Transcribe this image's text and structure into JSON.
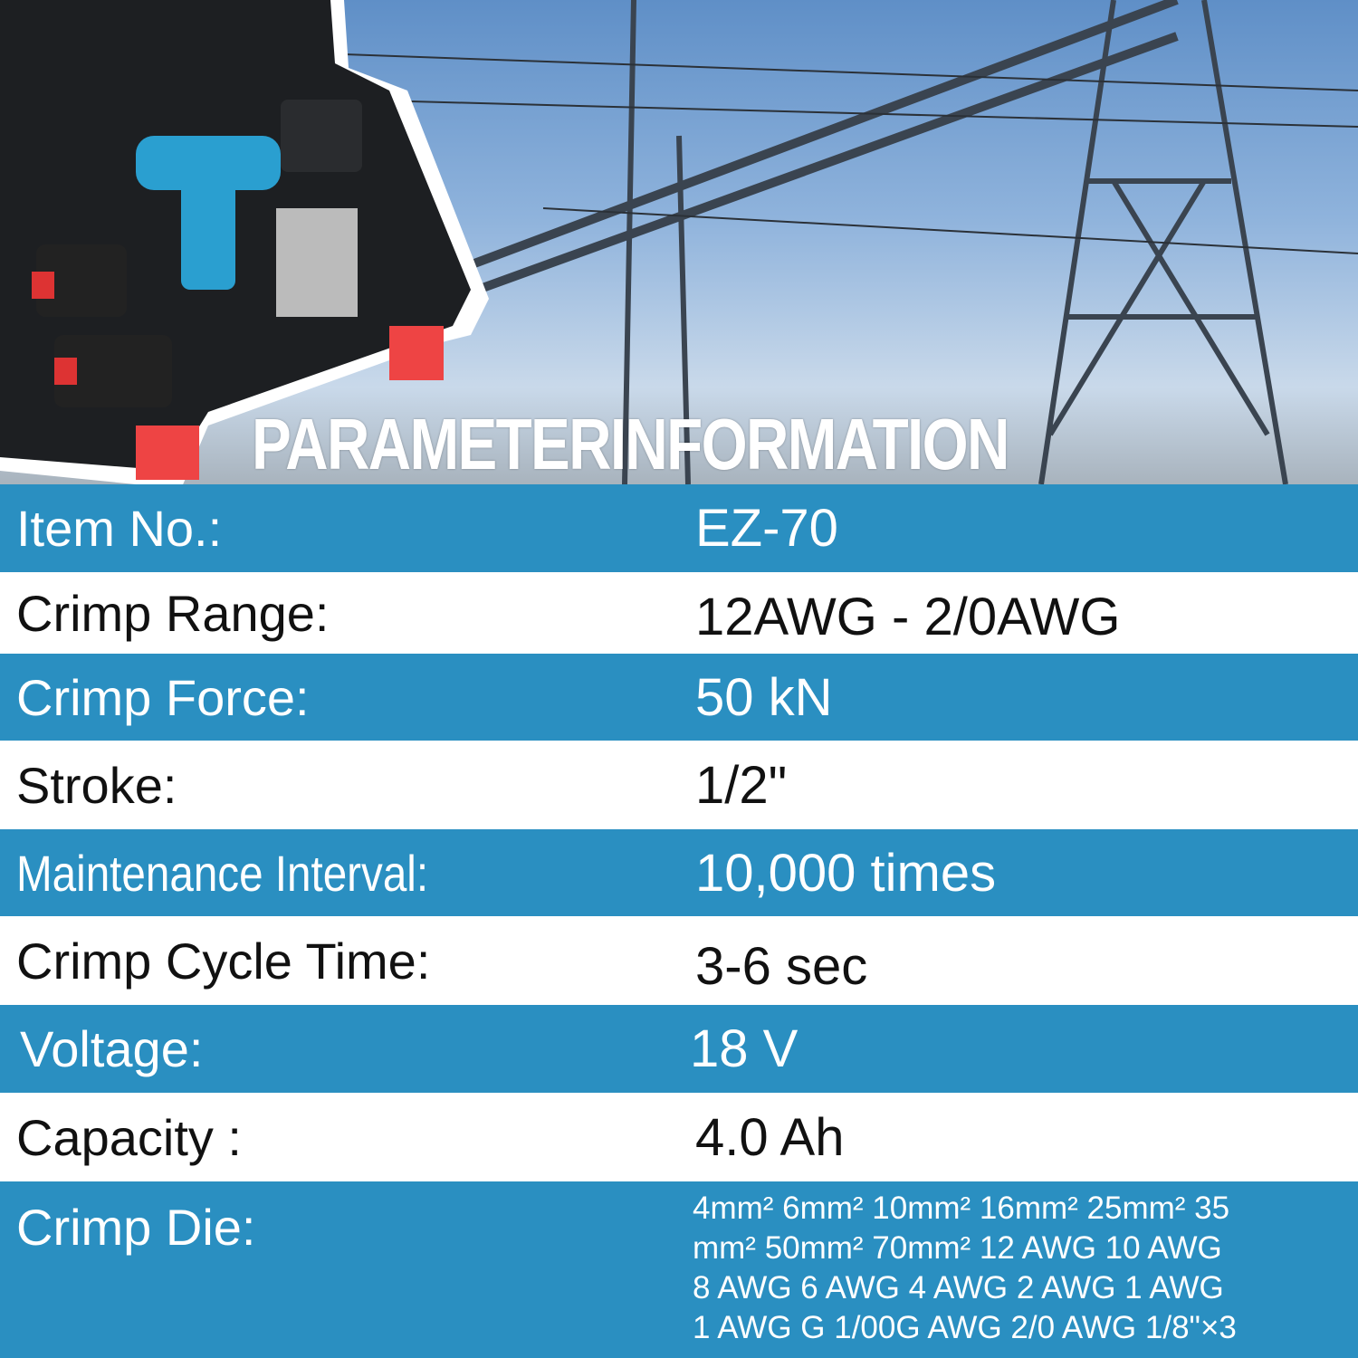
{
  "title": "PARAMETERINFORMATION",
  "colors": {
    "row_blue": "#2a8fc1",
    "row_white": "#ffffff"
  },
  "specs": [
    {
      "label": "Item No.:",
      "value": "EZ-70"
    },
    {
      "label": "Crimp Range:",
      "value": "12AWG - 2/0AWG"
    },
    {
      "label": "Crimp Force:",
      "value": "50 kN"
    },
    {
      "label": "Stroke:",
      "value": "1/2\""
    },
    {
      "label": "Maintenance Interval:",
      "value": "10,000 times"
    },
    {
      "label": "Crimp Cycle Time:",
      "value": "3-6 sec"
    },
    {
      "label": "Voltage:",
      "value": "18 V"
    },
    {
      "label": "Capacity :",
      "value": "4.0 Ah"
    }
  ],
  "crimp_die": {
    "label": "Crimp Die:",
    "lines": [
      "4mm² 6mm² 10mm² 16mm² 25mm² 35",
      "mm² 50mm² 70mm² 12 AWG 10 AWG",
      "8 AWG 6 AWG 4 AWG 2 AWG 1 AWG",
      "1 AWG G 1/00G AWG 2/0 AWG 1/8\"×3"
    ]
  }
}
